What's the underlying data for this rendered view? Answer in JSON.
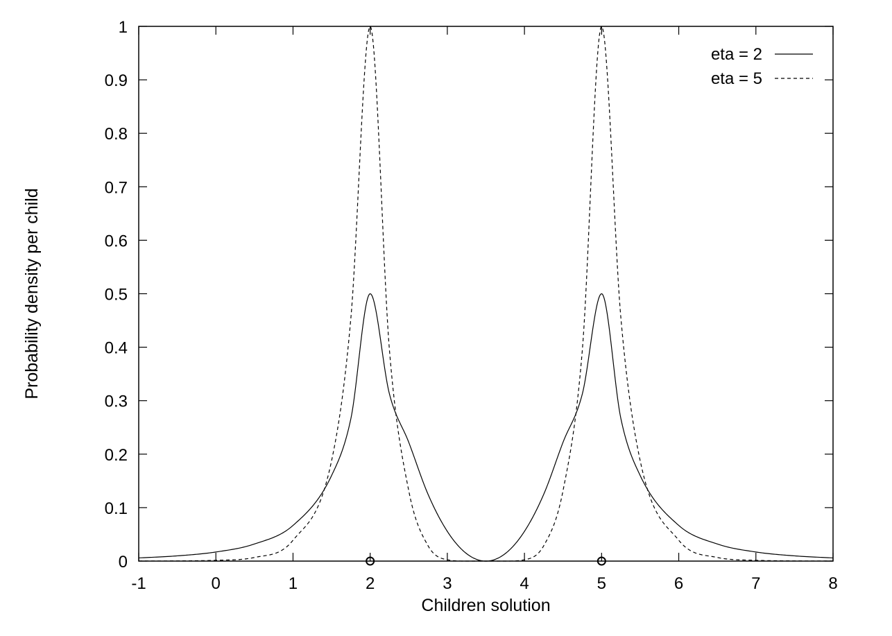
{
  "chart_data": {
    "type": "line",
    "xlabel": "Children solution",
    "ylabel": "Probability density per child",
    "xlim": [
      -1,
      8
    ],
    "ylim": [
      0,
      1
    ],
    "x_ticks": [
      -1,
      0,
      1,
      2,
      3,
      4,
      5,
      6,
      7,
      8
    ],
    "x_tick_labels": [
      "-1",
      "0",
      "1",
      "2",
      "3",
      "4",
      "5",
      "6",
      "7",
      "8"
    ],
    "y_ticks": [
      0,
      0.1,
      0.2,
      0.3,
      0.4,
      0.5,
      0.6,
      0.7,
      0.8,
      0.9,
      1
    ],
    "y_tick_labels": [
      "0",
      "0.1",
      "0.2",
      "0.3",
      "0.4",
      "0.5",
      "0.6",
      "0.7",
      "0.8",
      "0.9",
      "1"
    ],
    "grid": false,
    "legend_position": "top-right",
    "parent_markers": [
      {
        "x": 2,
        "y": 0,
        "symbol": "o"
      },
      {
        "x": 5,
        "y": 0,
        "symbol": "o"
      }
    ],
    "series": [
      {
        "name": "eta = 2",
        "style": "solid",
        "color": "#000000",
        "x": [
          -1,
          -0.5,
          0,
          0.5,
          1,
          1.5,
          1.75,
          2,
          2.25,
          2.5,
          2.75,
          3,
          3.25,
          3.5,
          3.75,
          4,
          4.25,
          4.5,
          4.75,
          5,
          5.25,
          5.5,
          6,
          6.5,
          7,
          7.5,
          8
        ],
        "y": [
          0.0059,
          0.0098,
          0.017,
          0.032,
          0.0667,
          0.16,
          0.2664,
          0.5,
          0.3125,
          0.2222,
          0.125,
          0.0556,
          0.0139,
          0,
          0.0139,
          0.0556,
          0.125,
          0.2222,
          0.3125,
          0.5,
          0.2664,
          0.16,
          0.0667,
          0.032,
          0.017,
          0.0098,
          0.0059
        ]
      },
      {
        "name": "eta = 5",
        "style": "dashed",
        "color": "#000000",
        "x": [
          -1,
          -0.5,
          0,
          0.5,
          1,
          1.5,
          1.75,
          2,
          2.25,
          2.5,
          2.75,
          3,
          3.25,
          3.5,
          3.75,
          4,
          4.25,
          4.5,
          4.75,
          5,
          5.25,
          5.5,
          6,
          6.5,
          7,
          7.5,
          8
        ],
        "y": [
          0.0001,
          0.0004,
          0.0015,
          0.0068,
          0.039,
          0.1877,
          0.4545,
          1.0,
          0.3944,
          0.1317,
          0.0288,
          0.0025,
          0.0,
          0,
          0.0,
          0.0025,
          0.0288,
          0.1317,
          0.3944,
          1.0,
          0.4545,
          0.1877,
          0.039,
          0.0068,
          0.0015,
          0.0004,
          0.0001
        ]
      }
    ]
  }
}
